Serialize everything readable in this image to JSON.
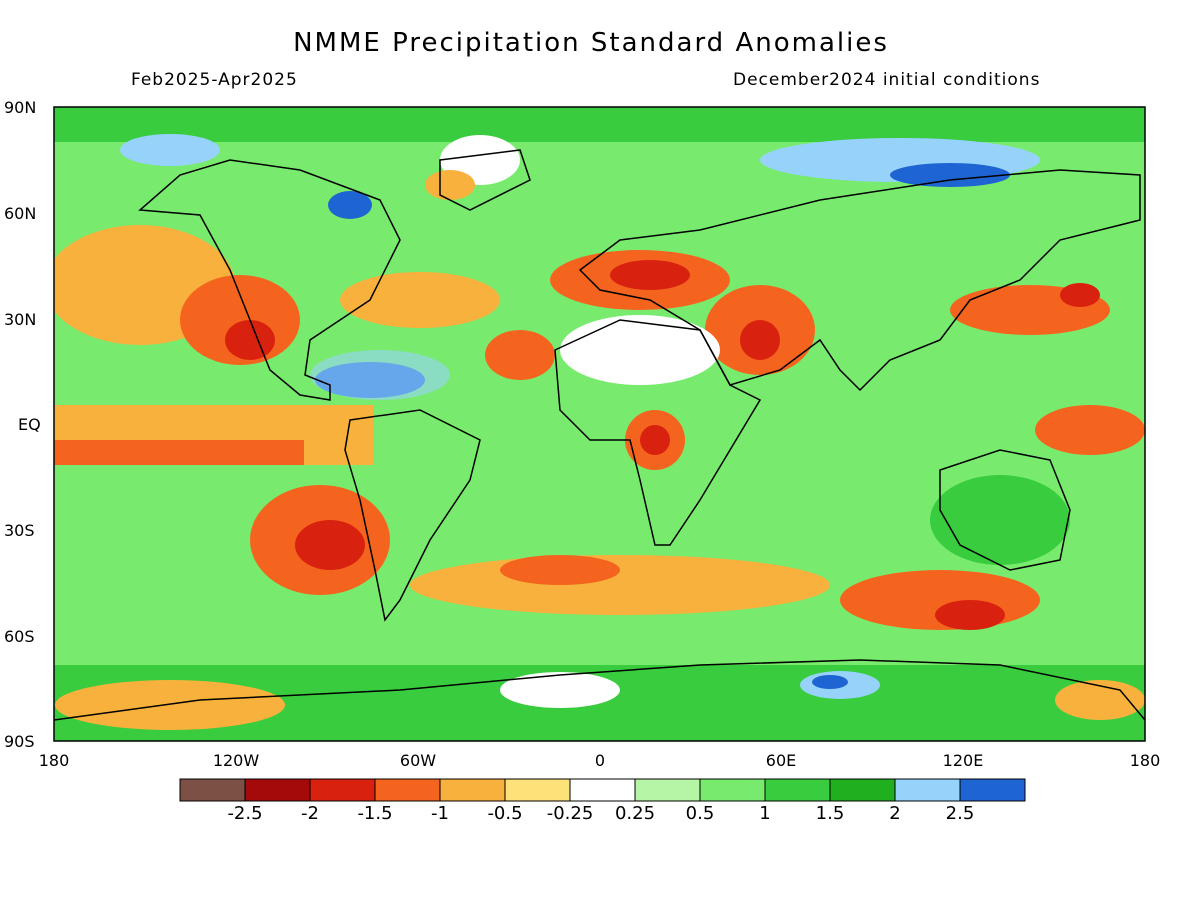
{
  "title": "NMME Precipitation Standard Anomalies",
  "period": "Feb2025-Apr2025",
  "initial_conditions": "December2024 initial conditions",
  "lat_ticks": [
    "90N",
    "60N",
    "30N",
    "EQ",
    "30S",
    "60S",
    "90S"
  ],
  "lon_ticks": [
    "180",
    "120W",
    "60W",
    "0",
    "60E",
    "120E",
    "180"
  ],
  "colorbar": {
    "colors": [
      "#7d5046",
      "#a50a0a",
      "#d9210f",
      "#f5641e",
      "#f7b13c",
      "#fde27a",
      "#ffffff",
      "#b6f5a6",
      "#78eb6e",
      "#38cc3e",
      "#1faf1f",
      "#96d2fa",
      "#1e64d2"
    ],
    "labels": [
      "-2.5",
      "-2",
      "-1.5",
      "-1",
      "-0.5",
      "-0.25",
      "0.25",
      "0.5",
      "1",
      "1.5",
      "2",
      "2.5"
    ]
  }
}
